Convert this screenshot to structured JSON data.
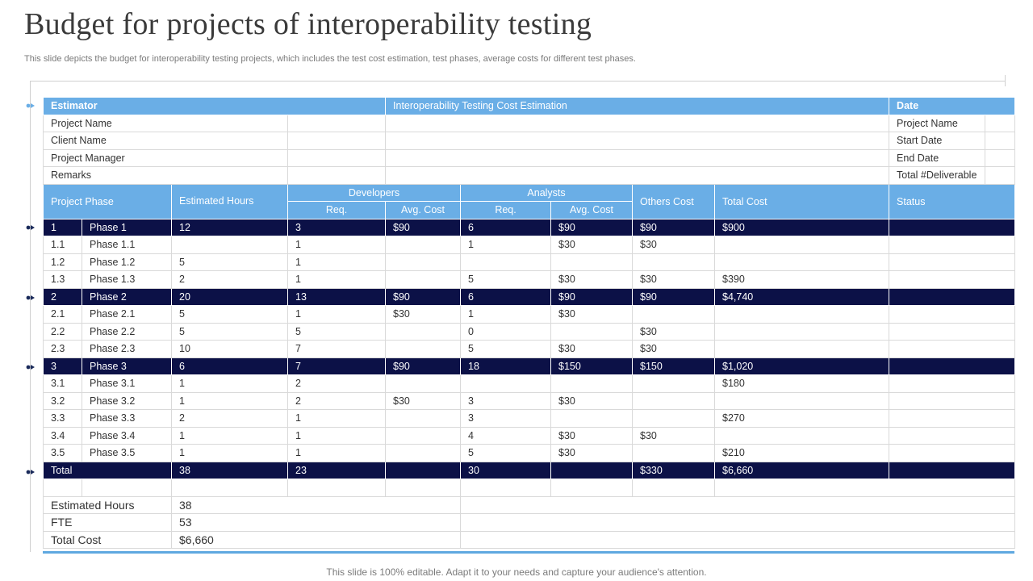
{
  "title": "Budget for projects of interoperability testing",
  "subtitle": "This slide depicts the budget for interoperability testing projects, which includes the test cost estimation, test phases, average costs for different test phases.",
  "footer": "This slide is 100% editable. Adapt it to your needs and capture your audience's attention.",
  "colors": {
    "header_blue": "#6aaee6",
    "phase_navy": "#0c1147",
    "accent": "#5fa8e0"
  },
  "info": {
    "estimator": "Estimator",
    "cost_estimation": "Interoperability  Testing Cost Estimation",
    "date": "Date",
    "left_rows": [
      "Project Name",
      "Client Name",
      "Project Manager",
      "Remarks"
    ],
    "right_rows": [
      "Project Name",
      "Start Date",
      "End Date",
      "Total #Deliverable"
    ]
  },
  "headers": {
    "project_phase": "Project Phase",
    "estimated_hours": "Estimated Hours",
    "developers": "Developers",
    "analysts": "Analysts",
    "req": "Req.",
    "avg_cost": "Avg. Cost",
    "others_cost": "Others Cost",
    "total_cost": "Total Cost",
    "status": "Status"
  },
  "rows": [
    {
      "type": "phase",
      "id": "1",
      "name": "Phase 1",
      "hours": "12",
      "dev_req": "3",
      "dev_cost": "$90",
      "an_req": "6",
      "an_cost": "$90",
      "others": "$90",
      "total": "$900",
      "status": ""
    },
    {
      "type": "sub",
      "id": "1.1",
      "name": "Phase 1.1",
      "hours": "",
      "dev_req": "1",
      "dev_cost": "",
      "an_req": "1",
      "an_cost": "$30",
      "others": "$30",
      "total": "",
      "status": ""
    },
    {
      "type": "sub",
      "id": "1.2",
      "name": "Phase 1.2",
      "hours": "5",
      "dev_req": "1",
      "dev_cost": "",
      "an_req": "",
      "an_cost": "",
      "others": "",
      "total": "",
      "status": ""
    },
    {
      "type": "sub",
      "id": "1.3",
      "name": "Phase 1.3",
      "hours": "2",
      "dev_req": "1",
      "dev_cost": "",
      "an_req": "5",
      "an_cost": "$30",
      "others": "$30",
      "total": "$390",
      "status": ""
    },
    {
      "type": "phase",
      "id": "2",
      "name": "Phase 2",
      "hours": "20",
      "dev_req": "13",
      "dev_cost": "$90",
      "an_req": "6",
      "an_cost": "$90",
      "others": "$90",
      "total": "$4,740",
      "status": ""
    },
    {
      "type": "sub",
      "id": "2.1",
      "name": "Phase 2.1",
      "hours": "5",
      "dev_req": "1",
      "dev_cost": "$30",
      "an_req": "1",
      "an_cost": "$30",
      "others": "",
      "total": "",
      "status": ""
    },
    {
      "type": "sub",
      "id": "2.2",
      "name": "Phase 2.2",
      "hours": "5",
      "dev_req": "5",
      "dev_cost": "",
      "an_req": "0",
      "an_cost": "",
      "others": "$30",
      "total": "",
      "status": ""
    },
    {
      "type": "sub",
      "id": "2.3",
      "name": "Phase 2.3",
      "hours": "10",
      "dev_req": "7",
      "dev_cost": "",
      "an_req": "5",
      "an_cost": "$30",
      "others": "$30",
      "total": "",
      "status": ""
    },
    {
      "type": "phase",
      "id": "3",
      "name": "Phase 3",
      "hours": "6",
      "dev_req": "7",
      "dev_cost": "$90",
      "an_req": "18",
      "an_cost": "$150",
      "others": "$150",
      "total": "$1,020",
      "status": ""
    },
    {
      "type": "sub",
      "id": "3.1",
      "name": "Phase 3.1",
      "hours": "1",
      "dev_req": "2",
      "dev_cost": "",
      "an_req": "",
      "an_cost": "",
      "others": "",
      "total": "$180",
      "status": ""
    },
    {
      "type": "sub",
      "id": "3.2",
      "name": "Phase 3.2",
      "hours": "1",
      "dev_req": "2",
      "dev_cost": "$30",
      "an_req": "3",
      "an_cost": "$30",
      "others": "",
      "total": "",
      "status": ""
    },
    {
      "type": "sub",
      "id": "3.3",
      "name": "Phase 3.3",
      "hours": "2",
      "dev_req": "1",
      "dev_cost": "",
      "an_req": "3",
      "an_cost": "",
      "others": "",
      "total": "$270",
      "status": ""
    },
    {
      "type": "sub",
      "id": "3.4",
      "name": "Phase 3.4",
      "hours": "1",
      "dev_req": "1",
      "dev_cost": "",
      "an_req": "4",
      "an_cost": "$30",
      "others": "$30",
      "total": "",
      "status": ""
    },
    {
      "type": "sub",
      "id": "3.5",
      "name": "Phase 3.5",
      "hours": "1",
      "dev_req": "1",
      "dev_cost": "",
      "an_req": "5",
      "an_cost": "$30",
      "others": "",
      "total": "$210",
      "status": ""
    }
  ],
  "total_row": {
    "label": "Total",
    "hours": "38",
    "dev_req": "23",
    "an_req": "30",
    "others": "$330",
    "total": "$6,660"
  },
  "summary": [
    {
      "label": "Estimated Hours",
      "value": "38"
    },
    {
      "label": "FTE",
      "value": "53"
    },
    {
      "label": "Total Cost",
      "value": "$6,660"
    }
  ]
}
